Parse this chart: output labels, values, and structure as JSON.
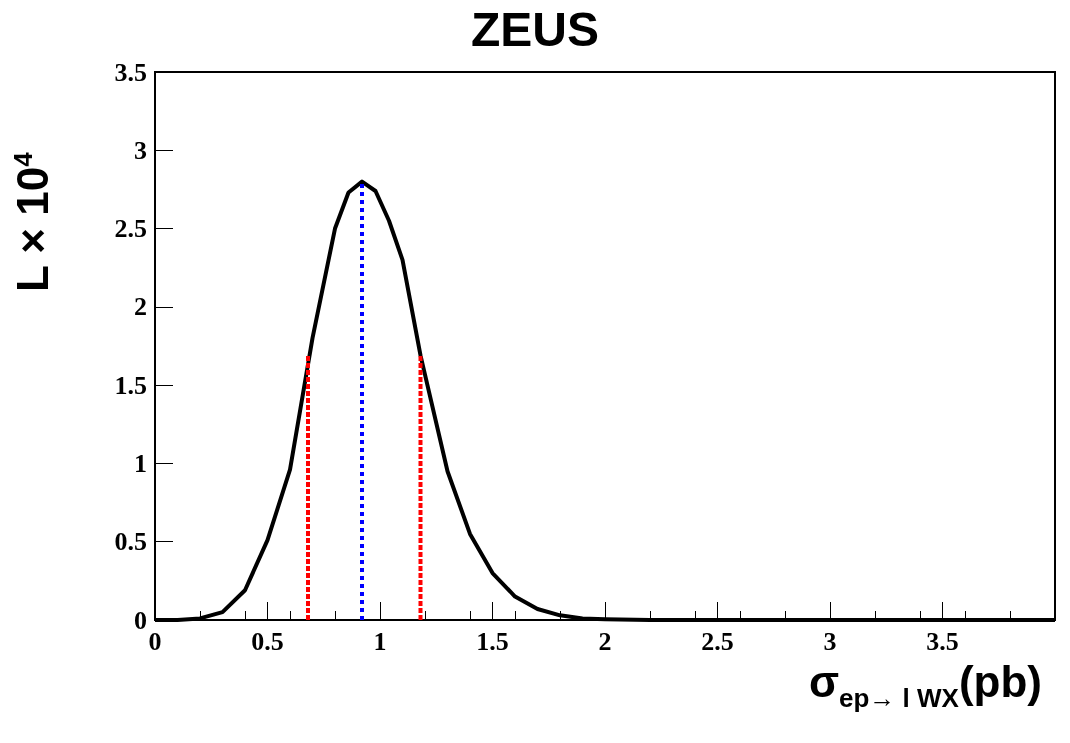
{
  "chart_data": {
    "type": "line",
    "title": "ZEUS",
    "xlabel": "σ$_{ep→ l WX}$(pb)",
    "ylabel": "L × 10$^{4}$",
    "xlim": [
      0,
      4
    ],
    "xticks": [
      0,
      0.5,
      1,
      1.5,
      2,
      2.5,
      3,
      3.5
    ],
    "ylim": [
      0,
      3.5
    ],
    "yticks": [
      0,
      0.5,
      1,
      1.5,
      2,
      2.5,
      3,
      3.5
    ],
    "marker": "none",
    "series": [
      {
        "color": "#000000",
        "line_style": "solid",
        "x": [
          0,
          0.1,
          0.2,
          0.3,
          0.4,
          0.5,
          0.6,
          0.7,
          0.8,
          0.86,
          0.92,
          0.98,
          1.04,
          1.1,
          1.18,
          1.3,
          1.4,
          1.5,
          1.6,
          1.7,
          1.8,
          1.9,
          2.0,
          2.2,
          2.5,
          3,
          3.5,
          4
        ],
        "values": [
          0,
          0,
          0.01,
          0.05,
          0.19,
          0.51,
          0.96,
          1.8,
          2.5,
          2.73,
          2.8,
          2.74,
          2.55,
          2.3,
          1.69,
          0.95,
          0.55,
          0.3,
          0.15,
          0.07,
          0.03,
          0.01,
          0.005,
          0,
          0,
          0,
          0,
          0
        ]
      },
      {
        "color": "#ff0000",
        "line_style": "dashed",
        "x": [
          0.68,
          0.68
        ],
        "values": [
          0,
          1.69
        ]
      },
      {
        "color": "#ff0000",
        "line_style": "dashed",
        "x": [
          1.18,
          1.18
        ],
        "values": [
          0,
          1.69
        ]
      },
      {
        "color": "#0000ff",
        "line_style": "dotted",
        "x": [
          0.92,
          0.92
        ],
        "values": [
          0,
          2.8
        ]
      }
    ]
  }
}
